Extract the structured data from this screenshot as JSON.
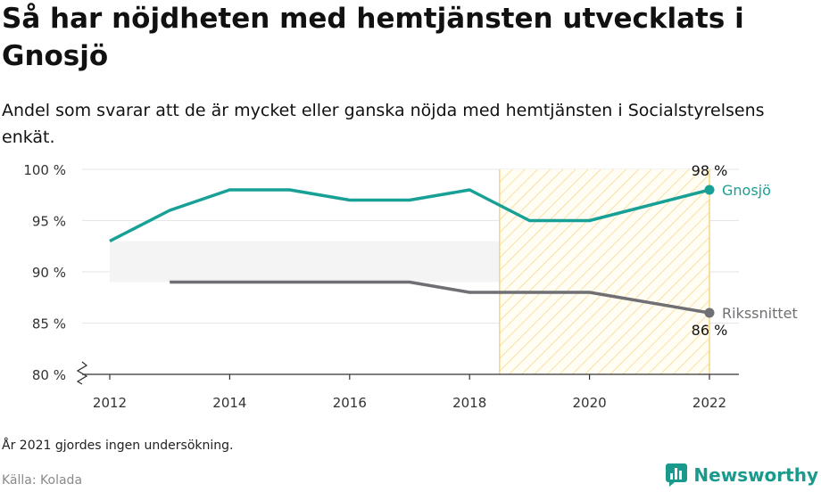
{
  "title": "Så har nöjdheten med hemtjänsten utvecklats i Gnosjö",
  "subtitle": "Andel som svarar att de är mycket eller ganska nöjda med hemtjänsten i Socialstyrelsens enkät.",
  "footnote": "År 2021 gjordes ingen undersökning.",
  "source": "Källa: Kolada",
  "brand": "Newsworthy",
  "colors": {
    "gnosjo": "#17a196",
    "riks": "#6f6f74",
    "hatch": "#f5d580",
    "band": "#f4f4f4",
    "grid": "#e6e6e6"
  },
  "chart_data": {
    "type": "line",
    "x": [
      2012,
      2013,
      2014,
      2015,
      2016,
      2017,
      2018,
      2019,
      2020,
      2022
    ],
    "xticks": [
      "2012",
      "2014",
      "2016",
      "2018",
      "2020",
      "2022"
    ],
    "yticks": [
      "80 %",
      "85 %",
      "90 %",
      "95 %",
      "100 %"
    ],
    "ylim": [
      80,
      100
    ],
    "xlim": [
      2012,
      2022
    ],
    "series": [
      {
        "name": "Gnosjö",
        "values": [
          93,
          96,
          98,
          98,
          97,
          97,
          98,
          95,
          95,
          98
        ],
        "end_label": "98 %"
      },
      {
        "name": "Rikssnittet",
        "values": [
          null,
          89,
          89,
          89,
          89,
          89,
          88,
          88,
          88,
          86
        ],
        "end_label": "86 %"
      }
    ],
    "shaded_period": [
      2018.5,
      2022
    ],
    "axis_break": true,
    "grid": true
  }
}
